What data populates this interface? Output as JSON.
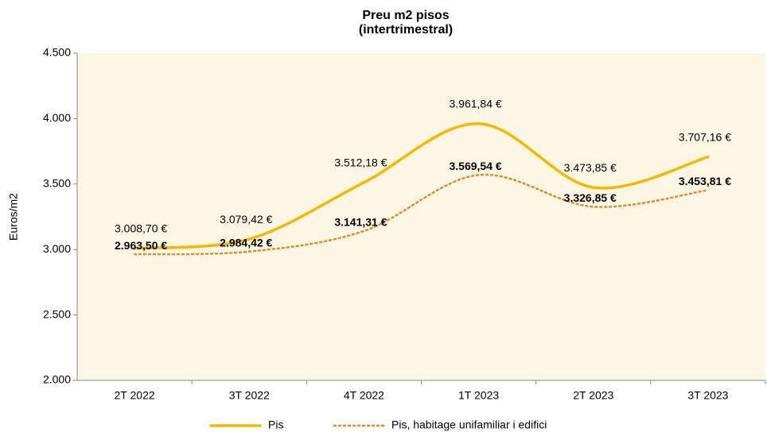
{
  "chart_data": {
    "type": "line",
    "title": "Preu m2 pisos",
    "subtitle": "(intertrimestral)",
    "y_label": "Euros/m2",
    "categories": [
      "2T 2022",
      "3T 2022",
      "4T 2022",
      "1T 2023",
      "2T 2023",
      "3T 2023"
    ],
    "series": [
      {
        "name": "Pis",
        "color": "#f5b800",
        "style": "solid",
        "values": [
          3008.7,
          3079.42,
          3512.18,
          3961.84,
          3473.85,
          3707.16
        ],
        "value_labels": [
          "3.008,70 €",
          "3.079,42 €",
          "3.512,18 €",
          "3.961,84 €",
          "3.473,85 €",
          "3.707,16 €"
        ],
        "label_color": "#000000"
      },
      {
        "name": "Pis, habitage unifamiliar i edifici",
        "color": "#e08a2a",
        "style": "dotted",
        "values": [
          2963.5,
          2984.42,
          3141.31,
          3569.54,
          3326.85,
          3453.81
        ],
        "value_labels": [
          "2.963,50 €",
          "2.984,42 €",
          "3.141,31 €",
          "3.569,54 €",
          "3.326,85 €",
          "3.453,81 €"
        ],
        "label_color": "#a0521e"
      }
    ],
    "ylim": [
      2000,
      4500
    ],
    "yticks": [
      {
        "value": 2000,
        "label": "2.000"
      },
      {
        "value": 2500,
        "label": "2.500"
      },
      {
        "value": 3000,
        "label": "3.000"
      },
      {
        "value": 3500,
        "label": "3.500"
      },
      {
        "value": 4000,
        "label": "4.000"
      },
      {
        "value": 4500,
        "label": "4.500"
      }
    ],
    "legend": "bottom",
    "background": "#fbf6e4"
  }
}
